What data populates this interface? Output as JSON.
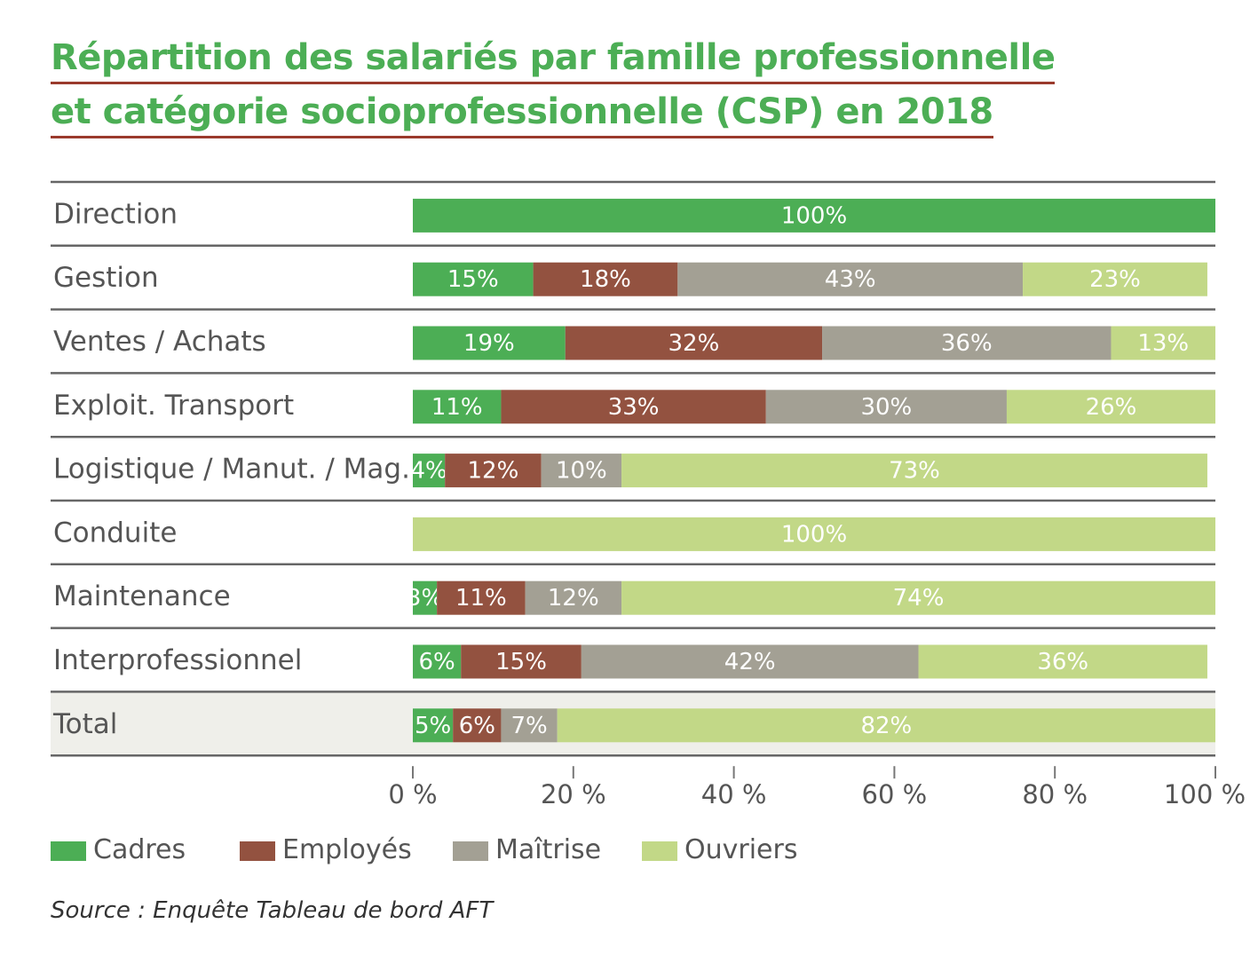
{
  "title_lines": [
    "Répartition des salariés par famille professionnelle",
    "et catégorie socioprofessionnelle (CSP) en 2018"
  ],
  "source": "Source : Enquête Tableau de bord AFT",
  "colors": {
    "title": "#4cae55",
    "title_underline": "#9a3a2c",
    "Cadres": "#4cae55",
    "Employés": "#935240",
    "Maîtrise": "#a3a094",
    "Ouvriers": "#c2d887",
    "row_label": "#555555",
    "separator": "#666666",
    "total_background": "#efefea"
  },
  "chart_data": {
    "type": "bar",
    "orientation": "horizontal",
    "stacked": true,
    "categories": [
      "Direction",
      "Gestion",
      "Ventes / Achats",
      "Exploit. Transport",
      "Logistique / Manut. / Mag.",
      "Conduite",
      "Maintenance",
      "Interprofessionnel",
      "Total"
    ],
    "series": [
      {
        "name": "Cadres",
        "values": [
          100,
          15,
          19,
          11,
          4,
          0,
          3,
          6,
          5
        ],
        "labels": [
          "100%",
          "15%",
          "19%",
          "11%",
          "4%",
          "",
          "3%",
          "6%",
          "5%"
        ]
      },
      {
        "name": "Employés",
        "values": [
          0,
          18,
          32,
          33,
          12,
          0,
          11,
          15,
          6
        ],
        "labels": [
          "",
          "18%",
          "32%",
          "33%",
          "12%",
          "",
          "11%",
          "15%",
          "6%"
        ]
      },
      {
        "name": "Maîtrise",
        "values": [
          0,
          43,
          36,
          30,
          10,
          0,
          12,
          42,
          7
        ],
        "labels": [
          "",
          "43%",
          "36%",
          "30%",
          "10%",
          "",
          "12%",
          "42%",
          "7%"
        ]
      },
      {
        "name": "Ouvriers",
        "values": [
          0,
          23,
          13,
          26,
          73,
          100,
          74,
          36,
          82
        ],
        "labels": [
          "",
          "23%",
          "13%",
          "26%",
          "73%",
          "100%",
          "74%",
          "36%",
          "82%"
        ]
      }
    ],
    "highlighted_category": "Total",
    "xlim": [
      0,
      100
    ],
    "x_ticks": [
      0,
      20,
      40,
      60,
      80,
      100
    ],
    "x_tick_labels": [
      "0 %",
      "20 %",
      "40 %",
      "60 %",
      "80 %",
      "100 %"
    ],
    "legend": [
      "Cadres",
      "Employés",
      "Maîtrise",
      "Ouvriers"
    ],
    "legend_position": "bottom-left"
  }
}
